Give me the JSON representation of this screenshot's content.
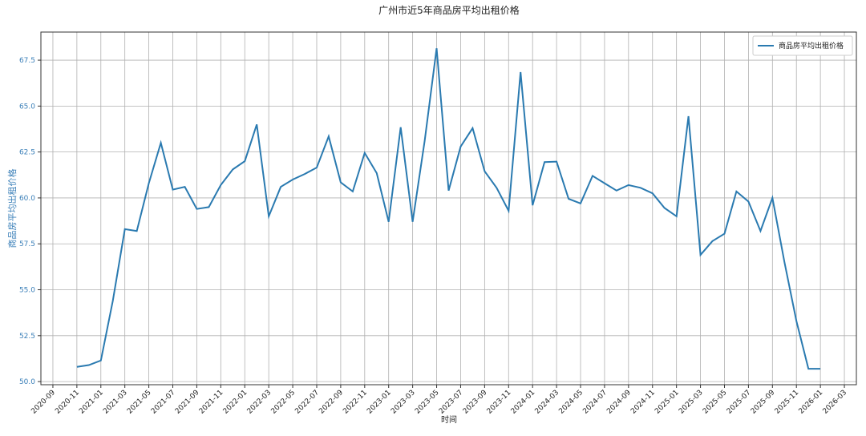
{
  "chart_data": {
    "type": "line",
    "title": "广州市近5年商品房平均出租价格",
    "x_label": "时间",
    "y_label": "商品房平均出租价格",
    "x": [
      "2020-11",
      "2020-12",
      "2021-01",
      "2021-02",
      "2021-03",
      "2021-04",
      "2021-05",
      "2021-06",
      "2021-07",
      "2021-08",
      "2021-09",
      "2021-10",
      "2021-11",
      "2021-12",
      "2022-01",
      "2022-02",
      "2022-03",
      "2022-04",
      "2022-05",
      "2022-06",
      "2022-07",
      "2022-08",
      "2022-09",
      "2022-10",
      "2022-11",
      "2022-12",
      "2023-01",
      "2023-02",
      "2023-03",
      "2023-04",
      "2023-05",
      "2023-06",
      "2023-07",
      "2023-08",
      "2023-09",
      "2023-10",
      "2023-11",
      "2023-12",
      "2024-01",
      "2024-02",
      "2024-03",
      "2024-04",
      "2024-05",
      "2024-06",
      "2024-07",
      "2024-08",
      "2024-09",
      "2024-10",
      "2024-11",
      "2024-12",
      "2025-01",
      "2025-02",
      "2025-03",
      "2025-04",
      "2025-05",
      "2025-06",
      "2025-07",
      "2025-08",
      "2025-09",
      "2025-10",
      "2025-11",
      "2025-12",
      "2026-01"
    ],
    "series": [
      {
        "name": "商品房平均出租价格",
        "color": "#2a7ab0",
        "values": [
          50.8,
          50.9,
          51.15,
          54.4,
          58.3,
          58.2,
          60.8,
          63.0,
          60.45,
          60.6,
          59.4,
          59.5,
          60.7,
          61.55,
          62.0,
          64.0,
          59.0,
          60.6,
          61.0,
          61.3,
          61.65,
          63.35,
          60.85,
          60.35,
          62.45,
          61.35,
          58.7,
          63.85,
          58.7,
          63.1,
          68.15,
          60.4,
          62.8,
          63.8,
          61.45,
          60.55,
          59.3,
          66.85,
          59.6,
          61.95,
          61.98,
          59.95,
          59.7,
          61.2,
          60.8,
          60.4,
          60.7,
          60.55,
          60.25,
          59.45,
          59.0,
          64.45,
          56.9,
          57.65,
          58.05,
          60.35,
          59.8,
          58.2,
          60.0,
          56.5,
          53.3,
          50.7,
          50.7
        ]
      }
    ],
    "xlim": [
      "2020-08",
      "2026-04"
    ],
    "xticks": [
      "2020-09",
      "2020-11",
      "2021-01",
      "2021-03",
      "2021-05",
      "2021-07",
      "2021-09",
      "2021-11",
      "2022-01",
      "2022-03",
      "2022-05",
      "2022-07",
      "2022-09",
      "2022-11",
      "2023-01",
      "2023-03",
      "2023-05",
      "2023-07",
      "2023-09",
      "2023-11",
      "2024-01",
      "2024-03",
      "2024-05",
      "2024-07",
      "2024-09",
      "2024-11",
      "2025-01",
      "2025-03",
      "2025-05",
      "2025-07",
      "2025-09",
      "2025-11",
      "2026-01",
      "2026-03"
    ],
    "ylim": [
      49.83,
      69.03
    ],
    "yticks": [
      {
        "value": 50,
        "label": "50.0"
      },
      {
        "value": 52.5,
        "label": "52.5"
      },
      {
        "value": 55,
        "label": "55.0"
      },
      {
        "value": 57.5,
        "label": "57.5"
      },
      {
        "value": 60,
        "label": "60.0"
      },
      {
        "value": 62.5,
        "label": "62.5"
      },
      {
        "value": 65,
        "label": "65.0"
      },
      {
        "value": 67.5,
        "label": "67.5"
      }
    ],
    "grid": true,
    "legend": "upper right"
  }
}
